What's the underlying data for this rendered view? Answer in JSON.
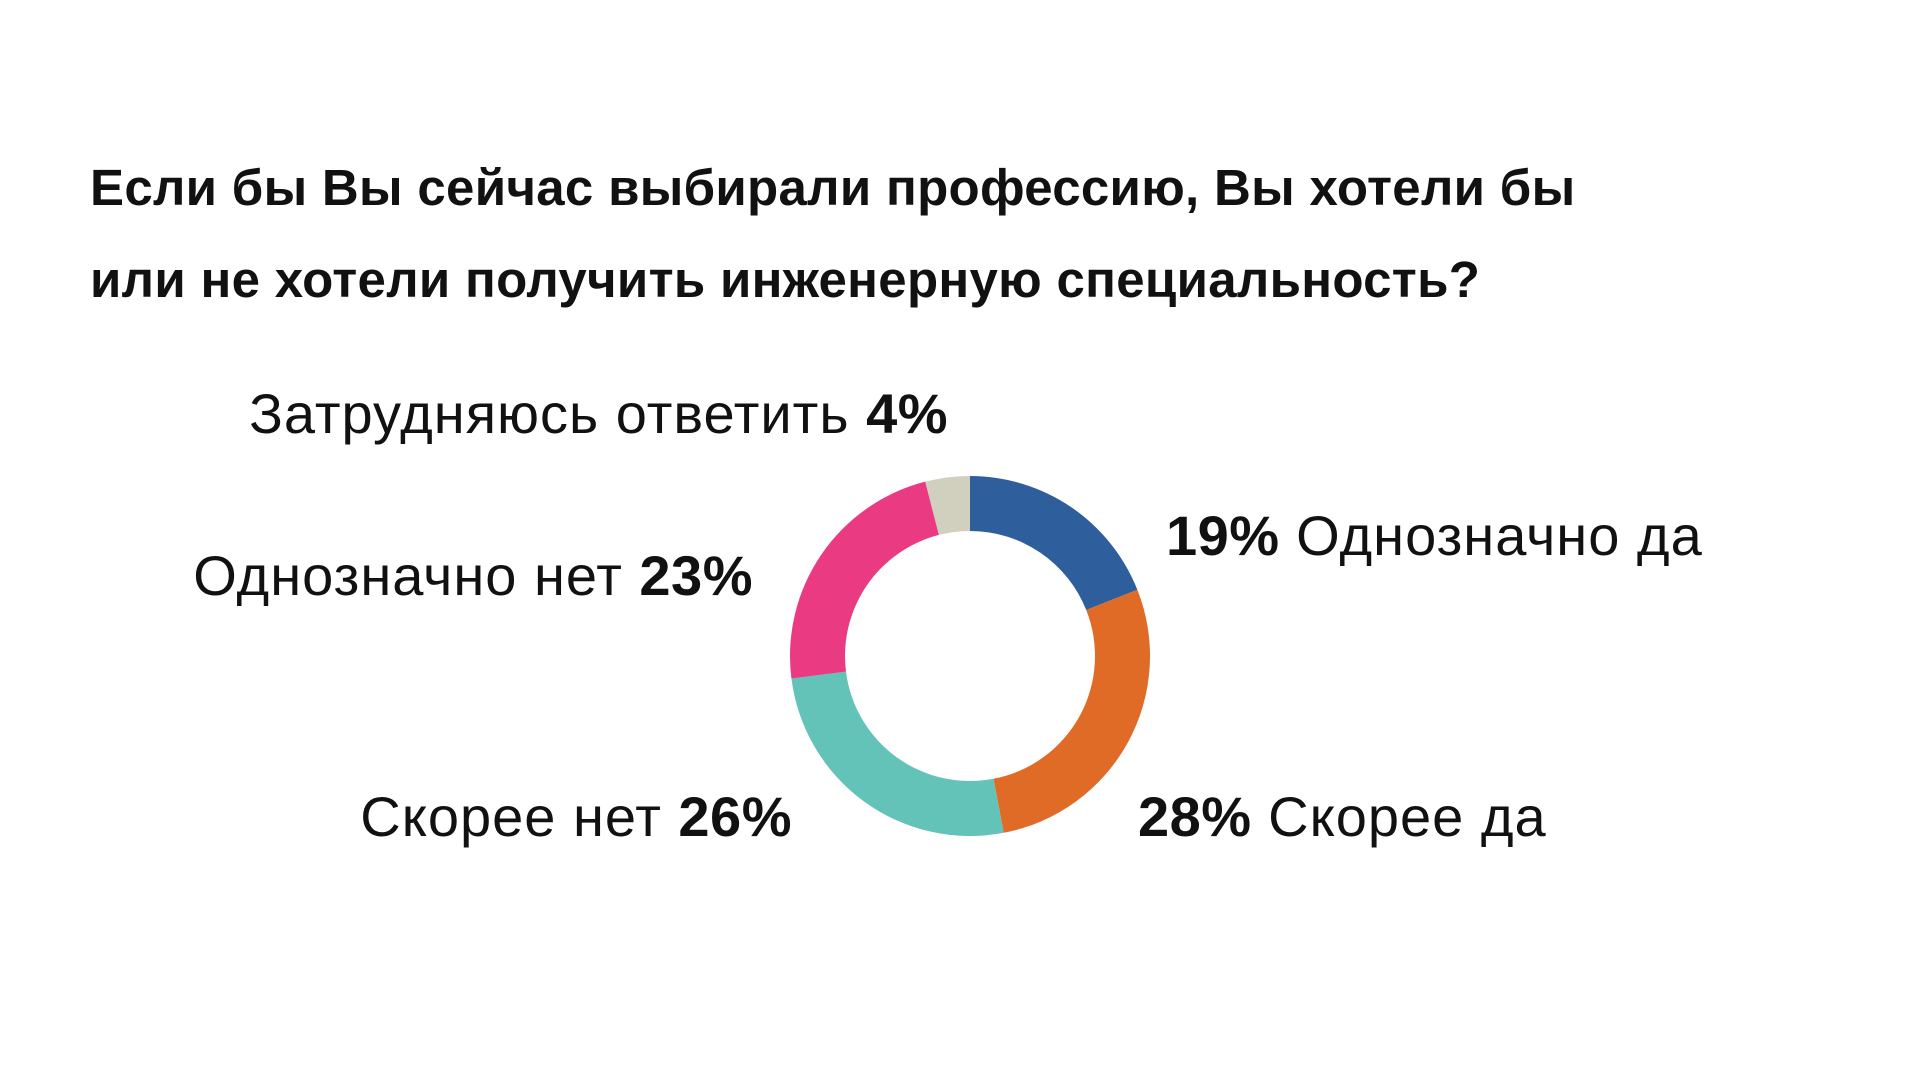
{
  "title": {
    "line1": "Если бы Вы сейчас выбирали профессию, Вы хотели бы",
    "line2": "или не хотели получить инженерную специальность?"
  },
  "chart_data": {
    "type": "pie",
    "variant": "donut",
    "title": "Если бы Вы сейчас выбирали профессию, Вы хотели бы или не хотели получить инженерную специальность?",
    "slices": [
      {
        "label": "Однозначно да",
        "value": 19,
        "display": "19%",
        "color": "#2E5F9C"
      },
      {
        "label": "Скорее да",
        "value": 28,
        "display": "28%",
        "color": "#E06B27"
      },
      {
        "label": "Скорее нет",
        "value": 26,
        "display": "26%",
        "color": "#63C3B8"
      },
      {
        "label": "Однозначно нет",
        "value": 23,
        "display": "23%",
        "color": "#EA3A82"
      },
      {
        "label": "Затрудняюсь ответить",
        "value": 4,
        "display": "4%",
        "color": "#D1CFBD"
      }
    ],
    "legend": "none",
    "start_angle": "12 o'clock",
    "direction": "clockwise"
  }
}
